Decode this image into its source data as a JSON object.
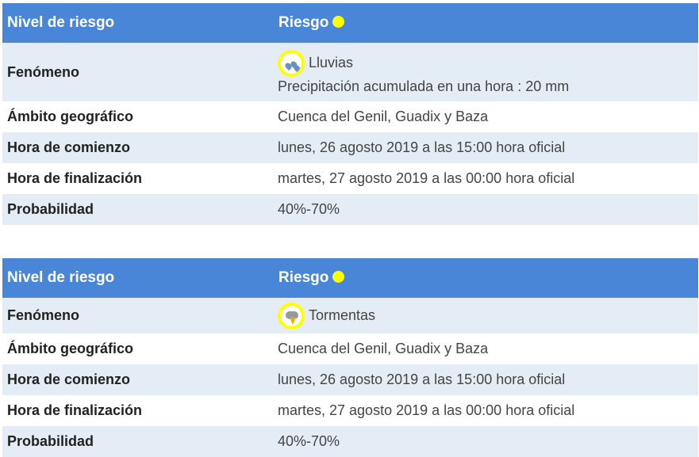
{
  "warnings": [
    {
      "header": {
        "label": "Nivel de riesgo",
        "value": "Riesgo",
        "level_color": "#ffff00"
      },
      "rows": {
        "phenomenon": {
          "label": "Fenómeno",
          "icon": "rain-icon",
          "value": "Lluvias",
          "detail": "Precipitación acumulada en una hora : 20 mm"
        },
        "area": {
          "label": "Ámbito geográfico",
          "value": "Cuenca del Genil, Guadix y Baza"
        },
        "start": {
          "label": "Hora de comienzo",
          "value": "lunes, 26 agosto 2019 a las 15:00 hora oficial"
        },
        "end": {
          "label": "Hora de finalización",
          "value": "martes, 27 agosto 2019 a las 00:00 hora oficial"
        },
        "probability": {
          "label": "Probabilidad",
          "value": "40%-70%"
        }
      }
    },
    {
      "header": {
        "label": "Nivel de riesgo",
        "value": "Riesgo",
        "level_color": "#ffff00"
      },
      "rows": {
        "phenomenon": {
          "label": "Fenómeno",
          "icon": "storm-icon",
          "value": "Tormentas"
        },
        "area": {
          "label": "Ámbito geográfico",
          "value": "Cuenca del Genil, Guadix y Baza"
        },
        "start": {
          "label": "Hora de comienzo",
          "value": "lunes, 26 agosto 2019 a las 15:00 hora oficial"
        },
        "end": {
          "label": "Hora de finalización",
          "value": "martes, 27 agosto 2019 a las 00:00 hora oficial"
        },
        "probability": {
          "label": "Probabilidad",
          "value": "40%-70%"
        }
      }
    }
  ]
}
